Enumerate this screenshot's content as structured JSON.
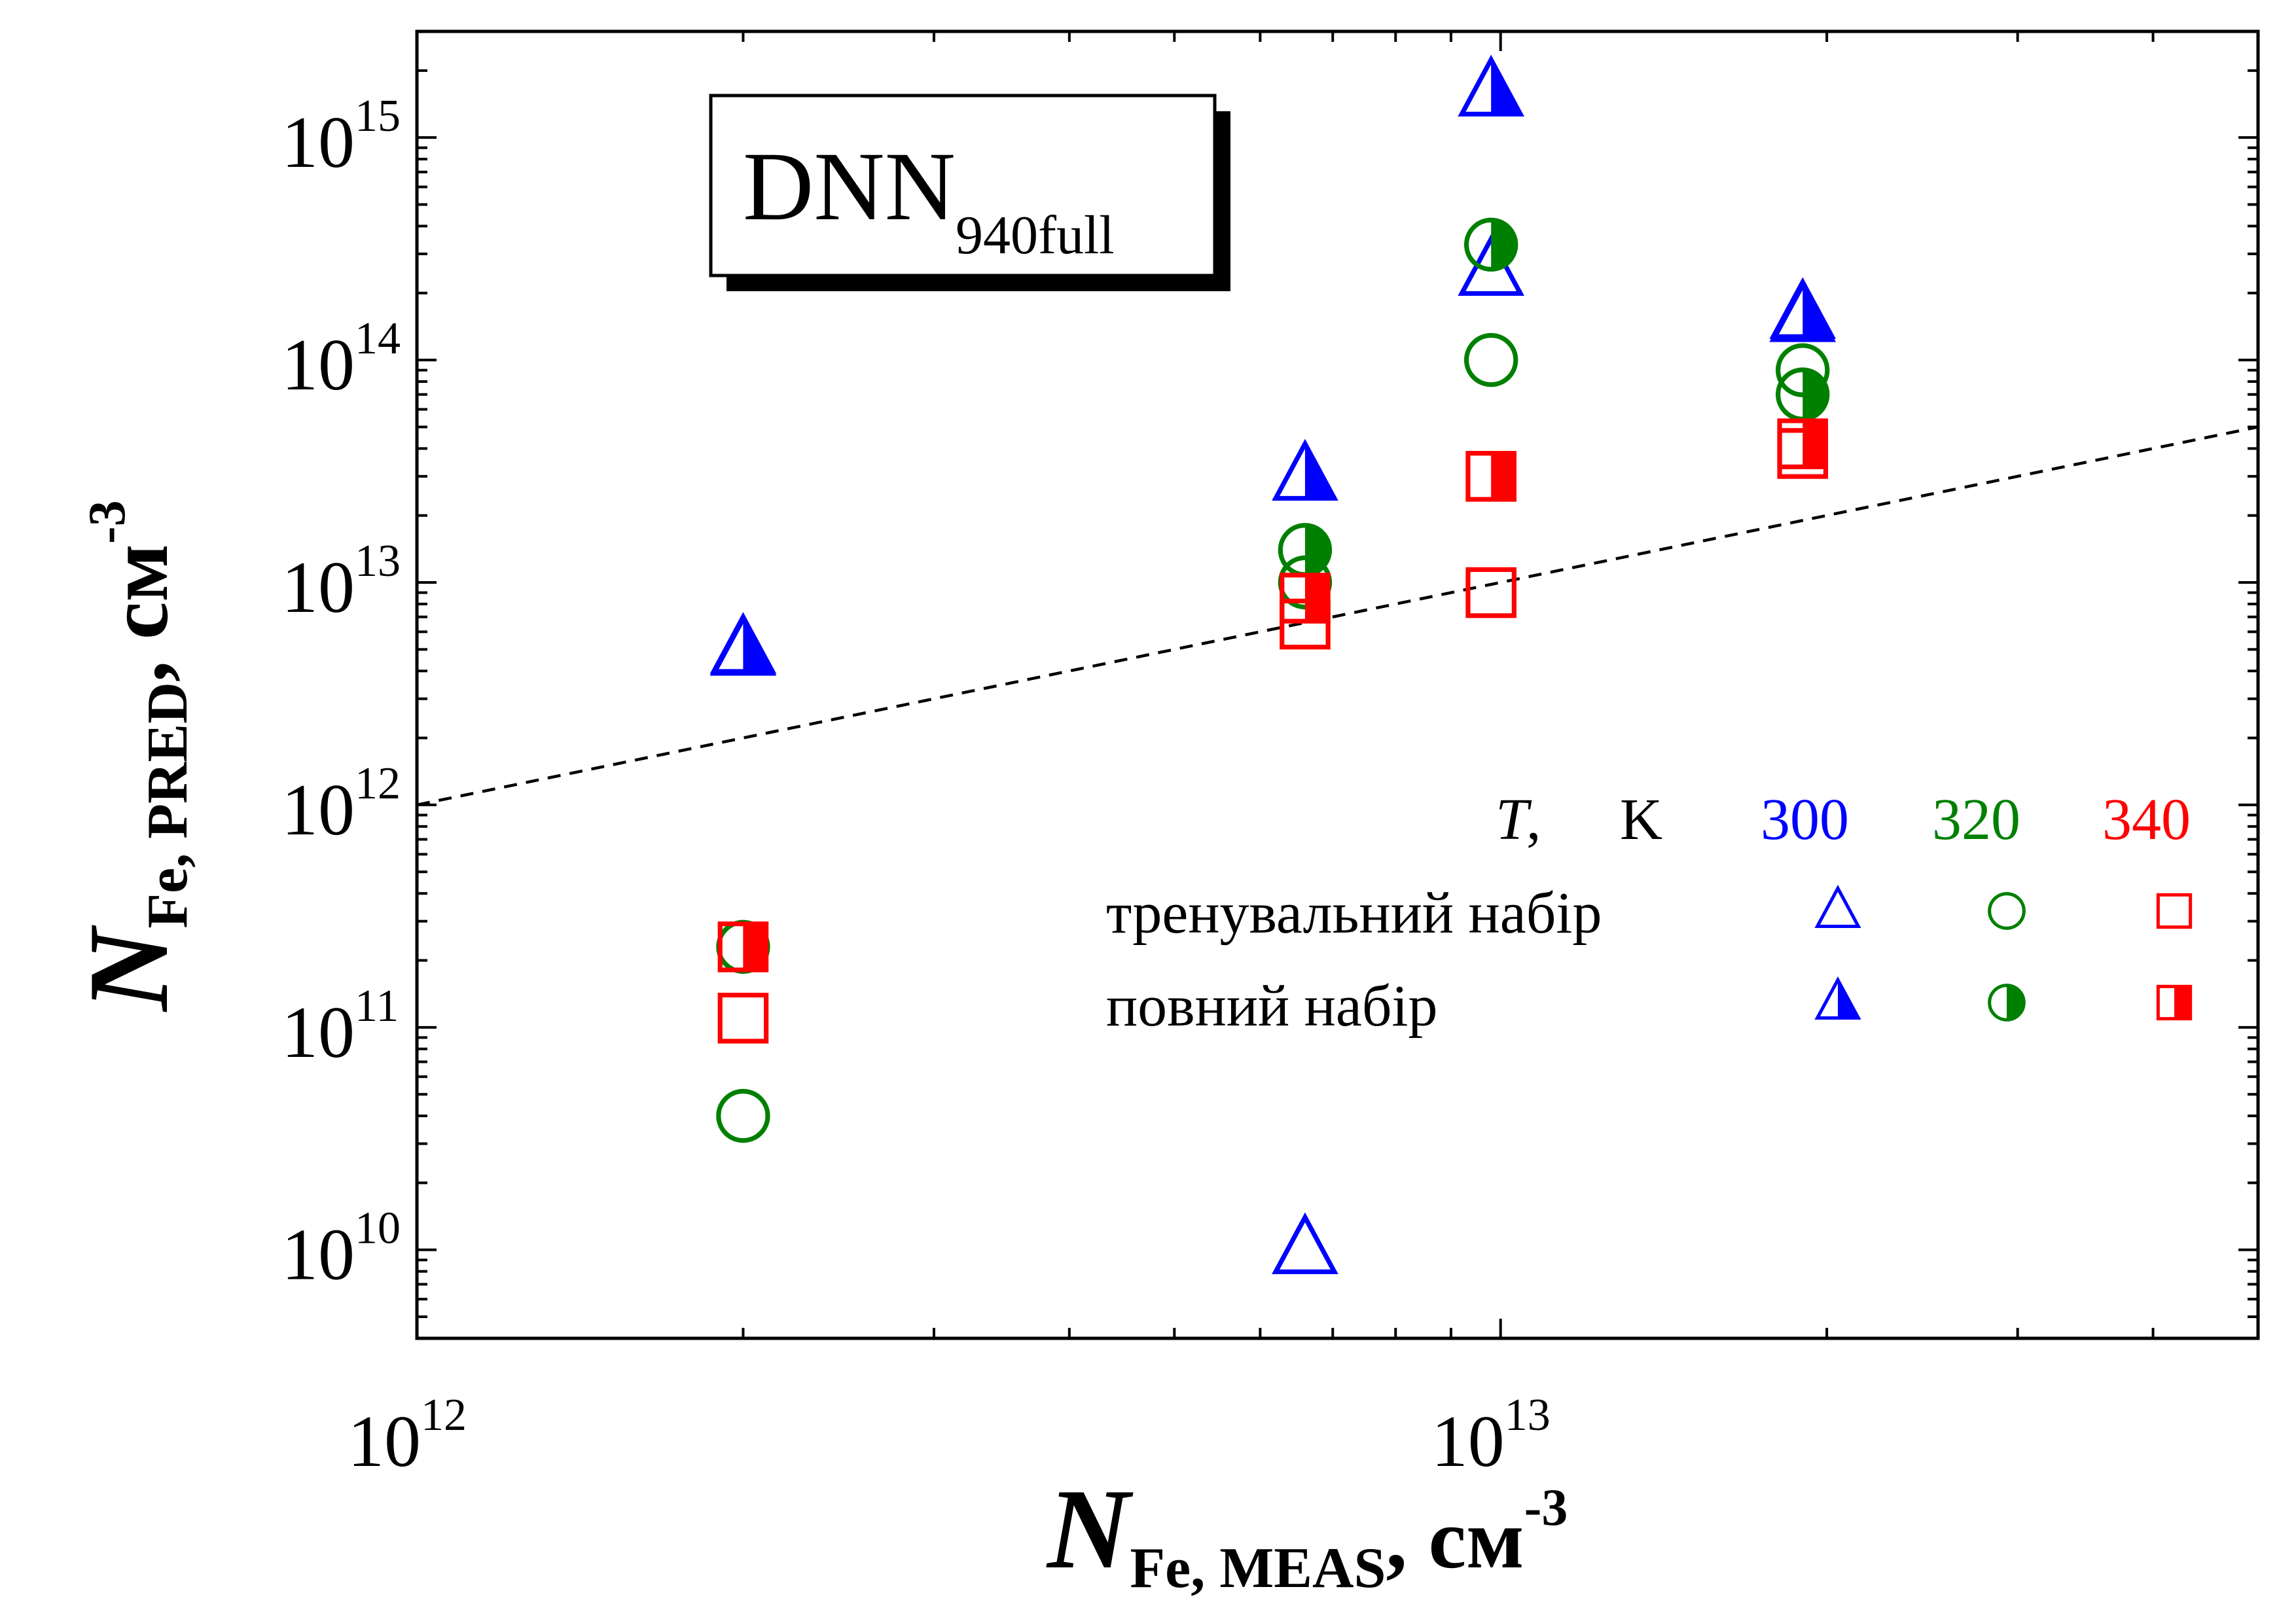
{
  "chart_data": {
    "type": "scatter",
    "x_scale": "log",
    "y_scale": "log",
    "xlim": [
      1000000000000.0,
      50000000000000.0
    ],
    "ylim": [
      4000000000.0,
      3000000000000000.0
    ],
    "x_ticks": [
      {
        "value": 1000000000000.0,
        "base": "10",
        "exp": "12"
      },
      {
        "value": 10000000000000.0,
        "base": "10",
        "exp": "13"
      }
    ],
    "y_ticks": [
      {
        "value": 10000000000.0,
        "base": "10",
        "exp": "10"
      },
      {
        "value": 100000000000.0,
        "base": "10",
        "exp": "11"
      },
      {
        "value": 1000000000000.0,
        "base": "10",
        "exp": "12"
      },
      {
        "value": 10000000000000.0,
        "base": "10",
        "exp": "13"
      },
      {
        "value": 100000000000000.0,
        "base": "10",
        "exp": "14"
      },
      {
        "value": 1000000000000000.0,
        "base": "10",
        "exp": "15"
      }
    ],
    "xlabel": {
      "main": "N",
      "sub": "Fe, MEAS",
      "unit": ", см",
      "exp": "-3"
    },
    "ylabel": {
      "main": "N",
      "sub": "Fe, PRED",
      "unit": ", см",
      "exp": "-3"
    },
    "annotation": {
      "main": "DNN",
      "sub": "940full"
    },
    "reference_line": {
      "style": "dashed",
      "color": "#000000",
      "points": [
        [
          1000000000000.0,
          1000000000000.0
        ],
        [
          50000000000000.0,
          50000000000000.0
        ]
      ]
    },
    "legend": {
      "position": "bottom-right",
      "header": {
        "var": "T",
        "sep": ",",
        "unit": "K"
      },
      "temperatures": [
        "300",
        "320",
        "340"
      ],
      "rows": [
        "тренувальний набір",
        "повний набір"
      ]
    },
    "series": [
      {
        "T": "300",
        "set": "training",
        "marker": "triangle",
        "fill": "none",
        "color": "#0000ff",
        "points": [
          [
            2000000000000.0,
            5000000000000.0
          ],
          [
            6600000000000.0,
            10000000000.0
          ],
          [
            9800000000000.0,
            250000000000000.0
          ],
          [
            19000000000000.0,
            160000000000000.0
          ]
        ]
      },
      {
        "T": "300",
        "set": "full",
        "marker": "triangle",
        "fill": "half",
        "color": "#0000ff",
        "points": [
          [
            2000000000000.0,
            4900000000000.0
          ],
          [
            6600000000000.0,
            30000000000000.0
          ],
          [
            9800000000000.0,
            1600000000000000.0
          ],
          [
            19000000000000.0,
            155000000000000.0
          ]
        ]
      },
      {
        "T": "320",
        "set": "training",
        "marker": "circle",
        "fill": "none",
        "color": "#008000",
        "points": [
          [
            2000000000000.0,
            40000000000.0
          ],
          [
            6600000000000.0,
            10000000000000.0
          ],
          [
            9800000000000.0,
            100000000000000.0
          ],
          [
            19000000000000.0,
            90000000000000.0
          ]
        ]
      },
      {
        "T": "320",
        "set": "full",
        "marker": "circle",
        "fill": "half",
        "color": "#008000",
        "points": [
          [
            2000000000000.0,
            230000000000.0
          ],
          [
            6600000000000.0,
            14000000000000.0
          ],
          [
            9800000000000.0,
            330000000000000.0
          ],
          [
            19000000000000.0,
            70000000000000.0
          ]
        ]
      },
      {
        "T": "340",
        "set": "training",
        "marker": "square",
        "fill": "none",
        "color": "#ff0000",
        "points": [
          [
            2000000000000.0,
            110000000000.0
          ],
          [
            6600000000000.0,
            6500000000000.0
          ],
          [
            9800000000000.0,
            9000000000000.0
          ],
          [
            19000000000000.0,
            38000000000000.0
          ]
        ]
      },
      {
        "T": "340",
        "set": "full",
        "marker": "square",
        "fill": "half",
        "color": "#ff0000",
        "points": [
          [
            2000000000000.0,
            230000000000.0
          ],
          [
            6600000000000.0,
            8500000000000.0
          ],
          [
            9800000000000.0,
            30000000000000.0
          ],
          [
            19000000000000.0,
            42000000000000.0
          ]
        ]
      }
    ]
  }
}
